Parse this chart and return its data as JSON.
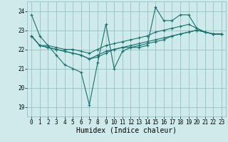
{
  "xlabel": "Humidex (Indice chaleur)",
  "ylabel": "",
  "background_color": "#ceeaea",
  "grid_color": "#8bbcbc",
  "line_color": "#1a7070",
  "xlim": [
    -0.5,
    23.5
  ],
  "ylim": [
    18.5,
    24.5
  ],
  "yticks": [
    19,
    20,
    21,
    22,
    23,
    24
  ],
  "xticks": [
    0,
    1,
    2,
    3,
    4,
    5,
    6,
    7,
    8,
    9,
    10,
    11,
    12,
    13,
    14,
    15,
    16,
    17,
    18,
    19,
    20,
    21,
    22,
    23
  ],
  "lines": [
    {
      "x": [
        0,
        1,
        2,
        3,
        4,
        5,
        6,
        7,
        8,
        9,
        10,
        11,
        12,
        13,
        14,
        15,
        16,
        17,
        18,
        19,
        20,
        21,
        22,
        23
      ],
      "y": [
        23.8,
        22.7,
        22.2,
        21.7,
        21.2,
        21.0,
        20.8,
        19.1,
        21.3,
        23.3,
        21.0,
        21.9,
        22.1,
        22.1,
        22.2,
        24.2,
        23.5,
        23.5,
        23.8,
        23.8,
        23.1,
        22.9,
        22.8,
        22.8
      ]
    },
    {
      "x": [
        0,
        1,
        2,
        3,
        4,
        5,
        6,
        7,
        8,
        9,
        10,
        11,
        12,
        13,
        14,
        15,
        16,
        17,
        18,
        19,
        20,
        21,
        22,
        23
      ],
      "y": [
        22.7,
        22.2,
        22.2,
        22.1,
        22.0,
        22.0,
        21.9,
        21.8,
        22.0,
        22.2,
        22.3,
        22.4,
        22.5,
        22.6,
        22.7,
        22.9,
        23.0,
        23.1,
        23.2,
        23.3,
        23.1,
        22.9,
        22.8,
        22.8
      ]
    },
    {
      "x": [
        0,
        1,
        2,
        3,
        4,
        5,
        6,
        7,
        8,
        9,
        10,
        11,
        12,
        13,
        14,
        15,
        16,
        17,
        18,
        19,
        20,
        21,
        22,
        23
      ],
      "y": [
        22.7,
        22.2,
        22.1,
        22.0,
        21.9,
        21.8,
        21.7,
        21.5,
        21.7,
        21.9,
        22.0,
        22.1,
        22.2,
        22.3,
        22.4,
        22.5,
        22.6,
        22.7,
        22.8,
        22.9,
        23.0,
        22.9,
        22.8,
        22.8
      ]
    },
    {
      "x": [
        0,
        1,
        2,
        3,
        4,
        5,
        6,
        7,
        8,
        9,
        10,
        11,
        12,
        13,
        14,
        15,
        16,
        17,
        18,
        19,
        20,
        21,
        22,
        23
      ],
      "y": [
        22.7,
        22.2,
        22.1,
        22.0,
        21.9,
        21.8,
        21.7,
        21.5,
        21.6,
        21.8,
        22.0,
        22.1,
        22.1,
        22.2,
        22.3,
        22.4,
        22.5,
        22.7,
        22.8,
        22.9,
        23.0,
        22.9,
        22.8,
        22.8
      ]
    }
  ],
  "marker": "+",
  "markersize": 3,
  "linewidth": 0.8,
  "tick_fontsize": 5.5,
  "xlabel_fontsize": 7
}
